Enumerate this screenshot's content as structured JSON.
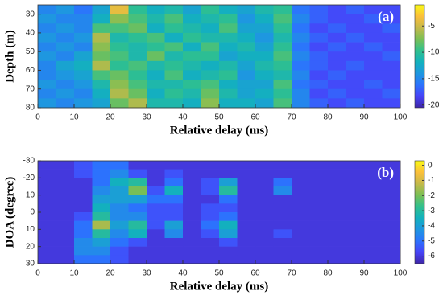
{
  "chart_data": [
    {
      "type": "heatmap",
      "panel_label": "(a)",
      "xlabel": "Relative delay (ms)",
      "ylabel": "Depth (m)",
      "x_bins": [
        0,
        5,
        10,
        15,
        20,
        25,
        30,
        35,
        40,
        45,
        50,
        55,
        60,
        65,
        70,
        75,
        80,
        85,
        90,
        95,
        100
      ],
      "y_bins": [
        25,
        30,
        35,
        40,
        45,
        50,
        55,
        60,
        65,
        70,
        75,
        80
      ],
      "z": [
        [
          -15,
          -14,
          -16,
          -13,
          -4,
          -10,
          -12,
          -11,
          -13,
          -10,
          -12,
          -13,
          -11,
          -10,
          -16,
          -17,
          -18,
          -17,
          -18,
          -18
        ],
        [
          -14,
          -15,
          -15,
          -12,
          -7,
          -9,
          -11,
          -9,
          -12,
          -11,
          -10,
          -14,
          -12,
          -9,
          -15,
          -17,
          -18,
          -18,
          -17,
          -18
        ],
        [
          -15,
          -14,
          -15,
          -9,
          -9,
          -8,
          -12,
          -10,
          -11,
          -12,
          -9,
          -13,
          -13,
          -10,
          -16,
          -18,
          -17,
          -18,
          -18,
          -17
        ],
        [
          -14,
          -15,
          -14,
          -6,
          -11,
          -10,
          -9,
          -12,
          -10,
          -11,
          -11,
          -12,
          -14,
          -11,
          -15,
          -17,
          -18,
          -17,
          -18,
          -18
        ],
        [
          -15,
          -14,
          -15,
          -7,
          -10,
          -11,
          -10,
          -9,
          -12,
          -9,
          -12,
          -11,
          -13,
          -10,
          -16,
          -18,
          -17,
          -18,
          -17,
          -18
        ],
        [
          -14,
          -15,
          -13,
          -8,
          -9,
          -11,
          -8,
          -11,
          -10,
          -10,
          -13,
          -12,
          -12,
          -9,
          -15,
          -17,
          -18,
          -18,
          -18,
          -17
        ],
        [
          -15,
          -13,
          -12,
          -6,
          -10,
          -9,
          -11,
          -10,
          -11,
          -12,
          -11,
          -13,
          -11,
          -10,
          -16,
          -17,
          -18,
          -17,
          -18,
          -18
        ],
        [
          -15,
          -14,
          -13,
          -9,
          -8,
          -10,
          -12,
          -9,
          -12,
          -11,
          -10,
          -14,
          -12,
          -11,
          -15,
          -18,
          -17,
          -18,
          -18,
          -18
        ],
        [
          -14,
          -15,
          -14,
          -11,
          -7,
          -9,
          -11,
          -11,
          -10,
          -9,
          -12,
          -13,
          -13,
          -9,
          -16,
          -17,
          -18,
          -18,
          -17,
          -18
        ],
        [
          -15,
          -14,
          -15,
          -12,
          -6,
          -8,
          -12,
          -10,
          -11,
          -8,
          -11,
          -13,
          -12,
          -10,
          -15,
          -18,
          -17,
          -18,
          -18,
          -17
        ],
        [
          -14,
          -15,
          -14,
          -13,
          -8,
          -6,
          -11,
          -11,
          -12,
          -7,
          -12,
          -12,
          -13,
          -9,
          -15,
          -17,
          -18,
          -17,
          -18,
          -18
        ]
      ],
      "xlim": [
        0,
        100
      ],
      "xticks": [
        0,
        10,
        20,
        30,
        40,
        50,
        60,
        70,
        80,
        90,
        100
      ],
      "ylim": [
        25,
        80
      ],
      "yticks": [
        30,
        40,
        50,
        60,
        70,
        80
      ],
      "y_reversed": true,
      "clim": [
        -20.5,
        -1
      ],
      "cticks": [
        -20,
        -15,
        -10,
        -5
      ],
      "colormap": [
        "#3e26a8",
        "#4743f8",
        "#2c73fd",
        "#1e97e0",
        "#13b1bd",
        "#31c08d",
        "#7abf55",
        "#c5b94a",
        "#fbbf3a",
        "#f9fb15"
      ]
    },
    {
      "type": "heatmap",
      "panel_label": "(b)",
      "xlabel": "Relative delay (ms)",
      "ylabel": "DOA (degree)",
      "x_bins": [
        0,
        5,
        10,
        15,
        20,
        25,
        30,
        35,
        40,
        45,
        50,
        55,
        60,
        65,
        70,
        75,
        80,
        85,
        90,
        95,
        100
      ],
      "y_bins": [
        -30,
        -25,
        -20,
        -15,
        -10,
        -5,
        0,
        5,
        10,
        15,
        20,
        25,
        30
      ],
      "z": [
        [
          -6,
          -6,
          -5.5,
          -5,
          -5,
          -6,
          -6,
          -6,
          -6,
          -6,
          -6,
          -6,
          -6,
          -6,
          -6,
          -6,
          -6,
          -6,
          -6,
          -6
        ],
        [
          -6,
          -6,
          -5.5,
          -5,
          -4.5,
          -5.5,
          -6,
          -5.5,
          -6,
          -6,
          -6,
          -6,
          -6,
          -6,
          -6,
          -6,
          -6,
          -6,
          -6,
          -6
        ],
        [
          -6,
          -6,
          -6,
          -5,
          -3.5,
          -3,
          -6,
          -5,
          -6,
          -5.5,
          -4,
          -6,
          -6,
          -5,
          -6,
          -6,
          -6,
          -6,
          -6,
          -6
        ],
        [
          -6,
          -6,
          -6,
          -4.5,
          -4,
          -2,
          -5.5,
          -3.5,
          -6,
          -5.5,
          -3,
          -6,
          -6,
          -4.5,
          -6,
          -6,
          -6,
          -6,
          -6,
          -6
        ],
        [
          -6,
          -6,
          -6,
          -4,
          -4,
          -4,
          -5,
          -5,
          -6,
          -6,
          -5,
          -6,
          -6,
          -6,
          -6,
          -6,
          -6,
          -6,
          -6,
          -6
        ],
        [
          -6,
          -6,
          -6,
          -3.5,
          -4.5,
          -5,
          -5.5,
          -5.5,
          -6,
          -5.5,
          -5.5,
          -6,
          -6,
          -6,
          -6,
          -6,
          -6,
          -6,
          -6,
          -6
        ],
        [
          -6,
          -6,
          -5.5,
          -3,
          -4.5,
          -4.5,
          -5.5,
          -5.5,
          -6,
          -5.5,
          -5,
          -6,
          -6,
          -6,
          -6,
          -6,
          -6,
          -6,
          -6,
          -6
        ],
        [
          -6,
          -6,
          -5,
          -1.5,
          -4,
          -3,
          -5.5,
          -4,
          -6,
          -5,
          -3.5,
          -6,
          -6,
          -6,
          -6,
          -6,
          -6,
          -6,
          -6,
          -6
        ],
        [
          -6,
          -6,
          -5,
          -3,
          -4.5,
          -3.5,
          -6,
          -4.5,
          -6,
          -5.5,
          -4,
          -6,
          -6,
          -5.5,
          -6,
          -6,
          -6,
          -6,
          -6,
          -6
        ],
        [
          -6,
          -6,
          -4.5,
          -4,
          -5,
          -5.5,
          -6,
          -6,
          -6,
          -6,
          -5.5,
          -6,
          -6,
          -6,
          -6,
          -6,
          -6,
          -6,
          -6,
          -6
        ],
        [
          -6,
          -6,
          -4.5,
          -4.5,
          -5.5,
          -6,
          -6,
          -6,
          -6,
          -6,
          -6,
          -6,
          -6,
          -6,
          -6,
          -6,
          -6,
          -6,
          -6,
          -6
        ],
        [
          -6,
          -6,
          -5,
          -5,
          -5.5,
          -6,
          -6,
          -6,
          -6,
          -6,
          -6,
          -6,
          -6,
          -6,
          -6,
          -6,
          -6,
          -6,
          -6,
          -6
        ]
      ],
      "xlim": [
        0,
        100
      ],
      "xticks": [
        0,
        10,
        20,
        30,
        40,
        50,
        60,
        70,
        80,
        90,
        100
      ],
      "ylim": [
        -30,
        30
      ],
      "yticks": [
        -30,
        -20,
        -10,
        0,
        10,
        20,
        30
      ],
      "y_reversed": true,
      "clim": [
        -6.5,
        0.3
      ],
      "cticks": [
        -6,
        -5,
        -4,
        -3,
        -2,
        -1,
        0
      ],
      "colormap": [
        "#3e26a8",
        "#4743f8",
        "#2c73fd",
        "#1e97e0",
        "#13b1bd",
        "#31c08d",
        "#7abf55",
        "#c5b94a",
        "#fbbf3a",
        "#f9fb15"
      ]
    }
  ]
}
